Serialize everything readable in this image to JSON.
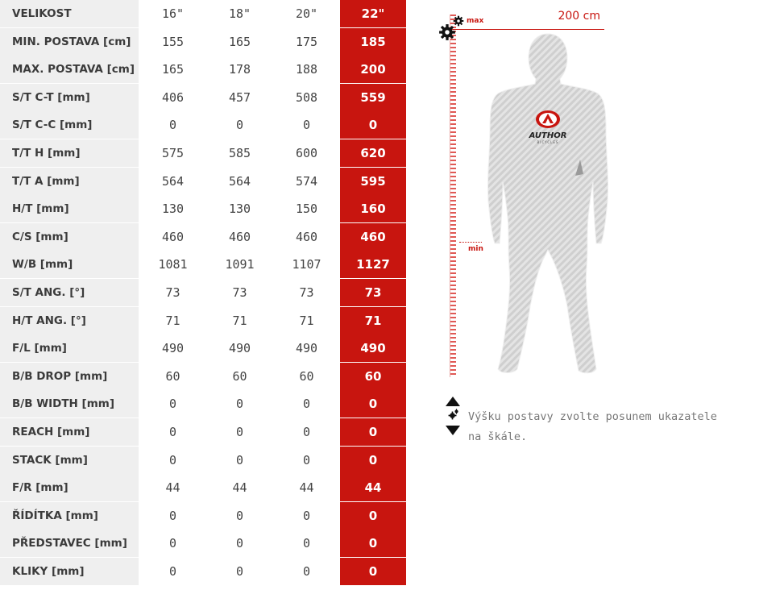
{
  "geometry": {
    "rows": [
      {
        "label": "VELIKOST",
        "values": [
          "16\"",
          "18\"",
          "20\""
        ],
        "selected": "22\""
      },
      {
        "label": "MIN. POSTAVA [cm]",
        "values": [
          "155",
          "165",
          "175"
        ],
        "selected": "185"
      },
      {
        "label": "MAX. POSTAVA [cm]",
        "values": [
          "165",
          "178",
          "188"
        ],
        "selected": "200"
      },
      {
        "label": "S/T C-T [mm]",
        "values": [
          "406",
          "457",
          "508"
        ],
        "selected": "559"
      },
      {
        "label": "S/T C-C [mm]",
        "values": [
          "0",
          "0",
          "0"
        ],
        "selected": "0"
      },
      {
        "label": "T/T H [mm]",
        "values": [
          "575",
          "585",
          "600"
        ],
        "selected": "620"
      },
      {
        "label": "T/T A [mm]",
        "values": [
          "564",
          "564",
          "574"
        ],
        "selected": "595"
      },
      {
        "label": "H/T [mm]",
        "values": [
          "130",
          "130",
          "150"
        ],
        "selected": "160"
      },
      {
        "label": "C/S [mm]",
        "values": [
          "460",
          "460",
          "460"
        ],
        "selected": "460"
      },
      {
        "label": "W/B [mm]",
        "values": [
          "1081",
          "1091",
          "1107"
        ],
        "selected": "1127"
      },
      {
        "label": "S/T ANG. [°]",
        "values": [
          "73",
          "73",
          "73"
        ],
        "selected": "73"
      },
      {
        "label": "H/T ANG. [°]",
        "values": [
          "71",
          "71",
          "71"
        ],
        "selected": "71"
      },
      {
        "label": "F/L [mm]",
        "values": [
          "490",
          "490",
          "490"
        ],
        "selected": "490"
      },
      {
        "label": "B/B DROP [mm]",
        "values": [
          "60",
          "60",
          "60"
        ],
        "selected": "60"
      },
      {
        "label": "B/B WIDTH [mm]",
        "values": [
          "0",
          "0",
          "0"
        ],
        "selected": "0"
      },
      {
        "label": "REACH [mm]",
        "values": [
          "0",
          "0",
          "0"
        ],
        "selected": "0"
      },
      {
        "label": "STACK [mm]",
        "values": [
          "0",
          "0",
          "0"
        ],
        "selected": "0"
      },
      {
        "label": "F/R [mm]",
        "values": [
          "44",
          "44",
          "44"
        ],
        "selected": "44"
      },
      {
        "label": "ŘÍDÍTKA [mm]",
        "values": [
          "0",
          "0",
          "0"
        ],
        "selected": "0"
      },
      {
        "label": "PŘEDSTAVEC [mm]",
        "values": [
          "0",
          "0",
          "0"
        ],
        "selected": "0"
      },
      {
        "label": "KLIKY [mm]",
        "values": [
          "0",
          "0",
          "0"
        ],
        "selected": "0"
      }
    ]
  },
  "picker": {
    "height_readout": "200 cm",
    "max_label": "max",
    "min_label": "min",
    "hint": "Výšku postavy zvolte posunem ukazatele na škále.",
    "logo_text": "AUTHOR",
    "logo_subtext": "BICYCLES",
    "handle_icon": "gear-icon",
    "arrows_icon": "up-down-arrows-icon"
  },
  "colors": {
    "accent": "#c8150f",
    "label_bg": "#efefef",
    "figure_fill": "#d9d9d9"
  }
}
